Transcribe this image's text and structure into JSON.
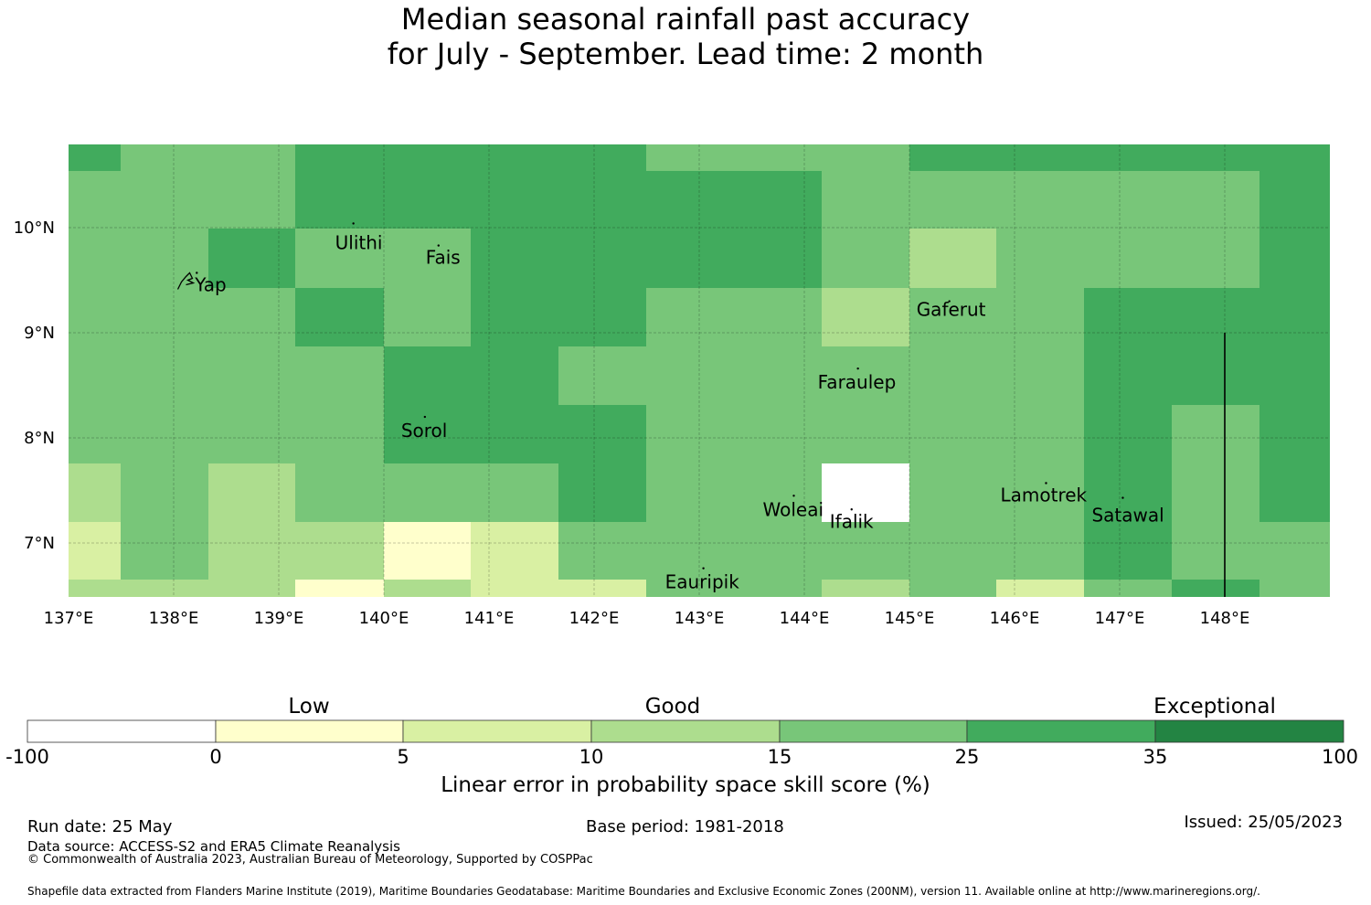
{
  "title": {
    "line1": "Median seasonal rainfall past accuracy",
    "line2": "for July - September. Lead time: 2 month"
  },
  "map": {
    "lon_labels": [
      "137°E",
      "138°E",
      "139°E",
      "140°E",
      "141°E",
      "142°E",
      "143°E",
      "144°E",
      "145°E",
      "146°E",
      "147°E",
      "148°E"
    ],
    "lat_labels": [
      "10°N",
      "9°N",
      "8°N",
      "7°N"
    ],
    "islands": [
      {
        "name": "Yap",
        "lon": 138.22,
        "lat": 9.5
      },
      {
        "name": "Ulithi",
        "lon": 139.71,
        "lat": 9.97
      },
      {
        "name": "Fais",
        "lon": 140.52,
        "lat": 9.76
      },
      {
        "name": "Gaferut",
        "lon": 145.38,
        "lat": 9.23
      },
      {
        "name": "Faraulep",
        "lon": 144.51,
        "lat": 8.59
      },
      {
        "name": "Sorol",
        "lon": 140.39,
        "lat": 8.13
      },
      {
        "name": "Woleai",
        "lon": 143.9,
        "lat": 7.38
      },
      {
        "name": "Ifalik",
        "lon": 144.45,
        "lat": 7.25
      },
      {
        "name": "Lamotrek",
        "lon": 146.3,
        "lat": 7.5
      },
      {
        "name": "Satawal",
        "lon": 147.03,
        "lat": 7.36
      },
      {
        "name": "Eauripik",
        "lon": 143.04,
        "lat": 6.69
      }
    ],
    "boundary_lon": 148.0
  },
  "colorbar": {
    "categories": [
      "Low",
      "Good",
      "Exceptional"
    ],
    "ticks": [
      "-100",
      "0",
      "5",
      "10",
      "15",
      "25",
      "35",
      "100"
    ],
    "colors": [
      "#ffffff",
      "#ffffcc",
      "#d9f0a3",
      "#addd8e",
      "#78c679",
      "#41ab5d",
      "#238443"
    ],
    "label": "Linear error in probability space skill score (%)"
  },
  "footer": {
    "run_date": "Run date: 25 May",
    "base_period": "Base period: 1981-2018",
    "issued": "Issued: 25/05/2023",
    "data_source": "Data source: ACCESS-S2 and ERA5 Climate Reanalysis",
    "copyright": "© Commonwealth of Australia 2023, Australian Bureau of Meteorology, Supported by COSPPac",
    "shapefile": "Shapefile data extracted from Flanders Marine Institute (2019), Maritime Boundaries Geodatabase: Maritime Boundaries and Exclusive Economic Zones (200NM), version 11. Available online at http://www.marineregions.org/."
  }
}
